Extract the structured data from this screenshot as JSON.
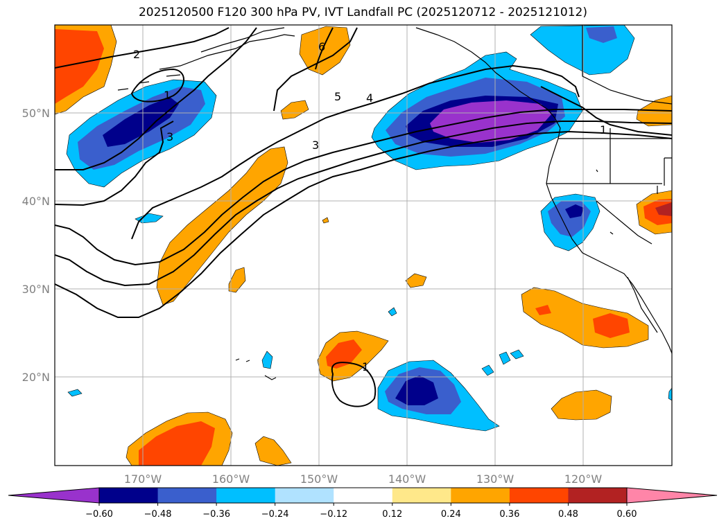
{
  "title": "2025120500 F120 300 hPa PV, IVT Landfall PC (2025120712 - 2025121012)",
  "map": {
    "lat_labels": [
      "50°N",
      "40°N",
      "30°N",
      "20°N"
    ],
    "lon_labels": [
      "170°W",
      "160°W",
      "150°W",
      "140°W",
      "130°W",
      "120°W"
    ],
    "contour_labels": [
      "2",
      "1",
      "3",
      "6",
      "5",
      "4",
      "3",
      "1",
      "1"
    ],
    "contour_color": "#000000",
    "gridline_color": "#b0b0b0"
  },
  "colorbar": {
    "colors": [
      "#9932CC",
      "#00008B",
      "#3A5FCD",
      "#00BFFF",
      "#B0E2FF",
      "#FFFFFF",
      "#FFE88A",
      "#FFA500",
      "#FF4500",
      "#B22222",
      "#FF85A8"
    ],
    "ticks": [
      "−0.60",
      "−0.48",
      "−0.36",
      "−0.24",
      "−0.12",
      "0.12",
      "0.24",
      "0.36",
      "0.48",
      "0.60"
    ]
  }
}
